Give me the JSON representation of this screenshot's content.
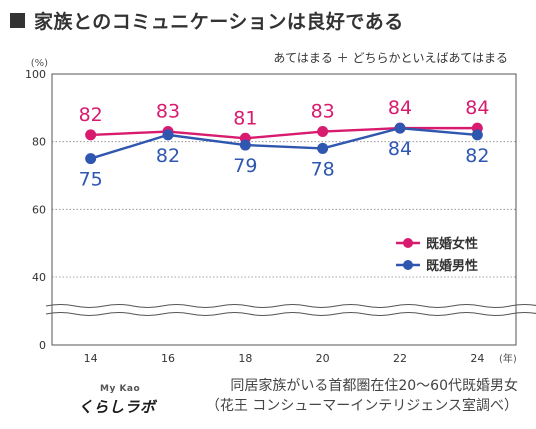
{
  "title": "家族とのコミュニケーションは良好である",
  "subtitle": "あてはまる ＋ どちらかといえばあてはまる",
  "footer": {
    "line1": "同居家族がいる首都圏在住20〜60代既婚男女",
    "line2": "（花王 コンシューマーインテリジェンス室調べ）"
  },
  "logo": {
    "top": "My Kao",
    "bottom": "くらしラボ"
  },
  "colors": {
    "female": "#d81b6f",
    "male": "#2f57b0",
    "text": "#333333"
  },
  "chart_data": {
    "type": "line",
    "x": [
      14,
      16,
      18,
      20,
      22,
      24
    ],
    "x_unit_label": "(年)",
    "y_unit_label": "(%)",
    "y_ticks": [
      0,
      40,
      60,
      80,
      100
    ],
    "ylim": [
      0,
      100
    ],
    "axis_break": "between 0 and 40",
    "grid": true,
    "legend_placement": "right",
    "series": [
      {
        "name": "既婚女性",
        "values": [
          82,
          83,
          81,
          83,
          84,
          84
        ],
        "color": "#d81b6f"
      },
      {
        "name": "既婚男性",
        "values": [
          75,
          82,
          79,
          78,
          84,
          82
        ],
        "color": "#2f57b0"
      }
    ]
  }
}
